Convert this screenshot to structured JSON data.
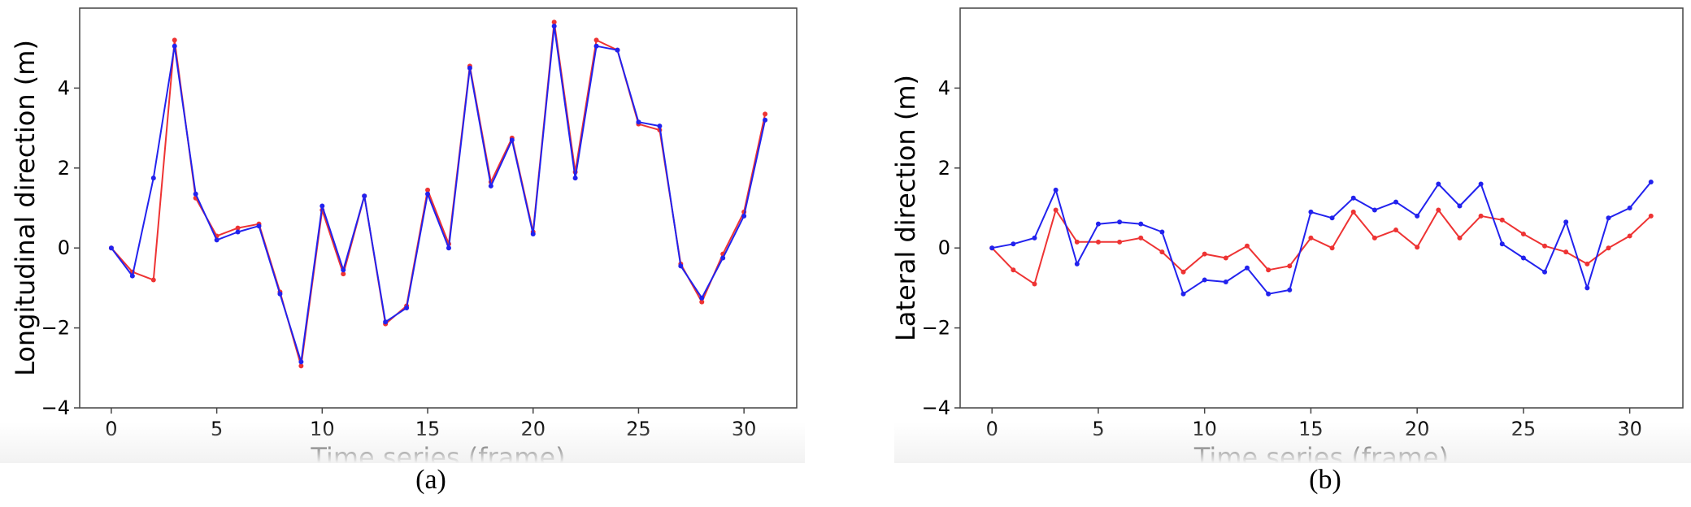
{
  "captions": {
    "a": "(a)",
    "b": "(b)"
  },
  "colors": {
    "series_red": "#ee3333",
    "series_blue": "#2222ee"
  },
  "chart_data": [
    {
      "type": "line",
      "panel": "a",
      "title": "",
      "xlabel": "Time series (frame)",
      "ylabel": "Longitudinal direction (m)",
      "xlim": [
        -1.5,
        32.5
      ],
      "ylim": [
        -4,
        6
      ],
      "xticks": [
        0,
        5,
        10,
        15,
        20,
        25,
        30
      ],
      "yticks": [
        -4,
        -2,
        0,
        2,
        4
      ],
      "grid": false,
      "x": [
        0,
        1,
        2,
        3,
        4,
        5,
        6,
        7,
        8,
        9,
        10,
        11,
        12,
        13,
        14,
        15,
        16,
        17,
        18,
        19,
        20,
        21,
        22,
        23,
        24,
        25,
        26,
        27,
        28,
        29,
        30,
        31
      ],
      "series": [
        {
          "color": "#ee3333",
          "values": [
            0,
            -0.6,
            -0.8,
            5.2,
            1.25,
            0.3,
            0.5,
            0.6,
            -1.1,
            -2.95,
            0.95,
            -0.65,
            1.3,
            -1.9,
            -1.45,
            1.45,
            0.1,
            4.55,
            1.65,
            2.75,
            0.4,
            5.65,
            1.9,
            5.2,
            4.95,
            3.1,
            2.95,
            -0.4,
            -1.35,
            -0.15,
            0.9,
            3.35
          ]
        },
        {
          "color": "#2222ee",
          "values": [
            0,
            -0.7,
            1.75,
            5.05,
            1.35,
            0.2,
            0.4,
            0.55,
            -1.15,
            -2.85,
            1.05,
            -0.55,
            1.3,
            -1.85,
            -1.5,
            1.35,
            0,
            4.5,
            1.55,
            2.7,
            0.35,
            5.55,
            1.75,
            5.05,
            4.95,
            3.15,
            3.05,
            -0.45,
            -1.25,
            -0.25,
            0.8,
            3.2
          ]
        }
      ]
    },
    {
      "type": "line",
      "panel": "b",
      "title": "",
      "xlabel": "Time series (frame)",
      "ylabel": "Lateral direction (m)",
      "xlim": [
        -1.5,
        32.5
      ],
      "ylim": [
        -4,
        6
      ],
      "xticks": [
        0,
        5,
        10,
        15,
        20,
        25,
        30
      ],
      "yticks": [
        -4,
        -2,
        0,
        2,
        4
      ],
      "grid": false,
      "x": [
        0,
        1,
        2,
        3,
        4,
        5,
        6,
        7,
        8,
        9,
        10,
        11,
        12,
        13,
        14,
        15,
        16,
        17,
        18,
        19,
        20,
        21,
        22,
        23,
        24,
        25,
        26,
        27,
        28,
        29,
        30,
        31
      ],
      "series": [
        {
          "color": "#ee3333",
          "values": [
            0,
            -0.55,
            -0.9,
            0.95,
            0.15,
            0.15,
            0.15,
            0.25,
            -0.1,
            -0.6,
            -0.15,
            -0.25,
            0.05,
            -0.55,
            -0.45,
            0.25,
            0,
            0.9,
            0.25,
            0.45,
            0.02,
            0.95,
            0.25,
            0.8,
            0.7,
            0.35,
            0.05,
            -0.1,
            -0.4,
            0,
            0.3,
            0.8
          ]
        },
        {
          "color": "#2222ee",
          "values": [
            0,
            0.1,
            0.25,
            1.45,
            -0.4,
            0.6,
            0.65,
            0.6,
            0.4,
            -1.15,
            -0.8,
            -0.85,
            -0.5,
            -1.15,
            -1.05,
            0.9,
            0.75,
            1.25,
            0.95,
            1.15,
            0.8,
            1.6,
            1.05,
            1.6,
            0.1,
            -0.25,
            -0.6,
            0.65,
            -1,
            0.75,
            1,
            1.65
          ]
        }
      ]
    }
  ]
}
